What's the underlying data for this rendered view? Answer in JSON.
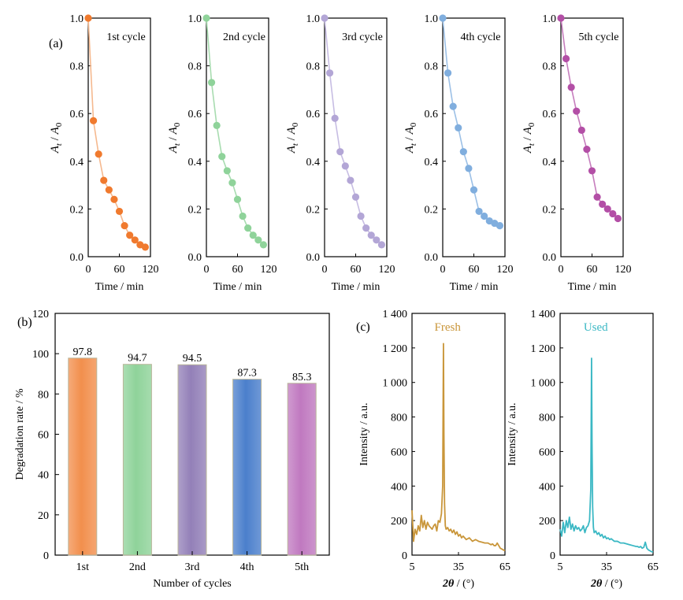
{
  "figure": {
    "panel_labels": {
      "a": "(a)",
      "b": "(b)",
      "c": "(c)"
    }
  },
  "chart_data": [
    {
      "type": "line",
      "panel": "(a)",
      "subplot_label": "1st cycle",
      "xlabel": "Time / min",
      "ylabel_main": "A",
      "ylabel_sub_t": "t",
      "ylabel_sep": " / ",
      "ylabel_sub_0": "0",
      "xlim": [
        0,
        120
      ],
      "ylim": [
        0,
        1.0
      ],
      "xticks": [
        0,
        60,
        120
      ],
      "yticks": [
        "0.0",
        "0.2",
        "0.4",
        "0.6",
        "0.8",
        "1.0"
      ],
      "color": "#f07a2e",
      "line_color": "#f5b98f",
      "x": [
        0,
        10,
        20,
        30,
        40,
        50,
        60,
        70,
        80,
        90,
        100,
        110
      ],
      "y": [
        1.0,
        0.57,
        0.43,
        0.32,
        0.28,
        0.24,
        0.19,
        0.13,
        0.09,
        0.07,
        0.05,
        0.04
      ]
    },
    {
      "type": "line",
      "panel": "(a)",
      "subplot_label": "2nd cycle",
      "xlabel": "Time / min",
      "ylabel_main": "A",
      "ylabel_sub_t": "t",
      "ylabel_sep": " / ",
      "ylabel_sub_0": "0",
      "xlim": [
        0,
        120
      ],
      "ylim": [
        0,
        1.0
      ],
      "xticks": [
        0,
        60,
        120
      ],
      "yticks": [
        "0.0",
        "0.2",
        "0.4",
        "0.6",
        "0.8",
        "1.0"
      ],
      "color": "#8fd39a",
      "line_color": "#a8dcb0",
      "x": [
        0,
        10,
        20,
        30,
        40,
        50,
        60,
        70,
        80,
        90,
        100,
        110
      ],
      "y": [
        1.0,
        0.73,
        0.55,
        0.42,
        0.36,
        0.31,
        0.24,
        0.17,
        0.12,
        0.09,
        0.07,
        0.05
      ]
    },
    {
      "type": "line",
      "panel": "(a)",
      "subplot_label": "3rd cycle",
      "xlabel": "Time / min",
      "ylabel_main": "A",
      "ylabel_sub_t": "t",
      "ylabel_sep": " / ",
      "ylabel_sub_0": "0",
      "xlim": [
        0,
        120
      ],
      "ylim": [
        0,
        1.0
      ],
      "xticks": [
        0,
        60,
        120
      ],
      "yticks": [
        "0.0",
        "0.2",
        "0.4",
        "0.6",
        "0.8",
        "1.0"
      ],
      "color": "#b3a6d6",
      "line_color": "#c7bde3",
      "x": [
        0,
        10,
        20,
        30,
        40,
        50,
        60,
        70,
        80,
        90,
        100,
        110
      ],
      "y": [
        1.0,
        0.77,
        0.58,
        0.44,
        0.38,
        0.32,
        0.25,
        0.17,
        0.12,
        0.09,
        0.07,
        0.05
      ]
    },
    {
      "type": "line",
      "panel": "(a)",
      "subplot_label": "4th cycle",
      "xlabel": "Time / min",
      "ylabel_main": "A",
      "ylabel_sub_t": "t",
      "ylabel_sep": " / ",
      "ylabel_sub_0": "0",
      "xlim": [
        0,
        120
      ],
      "ylim": [
        0,
        1.0
      ],
      "xticks": [
        0,
        60,
        120
      ],
      "yticks": [
        "0.0",
        "0.2",
        "0.4",
        "0.6",
        "0.8",
        "1.0"
      ],
      "color": "#80aede",
      "line_color": "#9cc0e6",
      "x": [
        0,
        10,
        20,
        30,
        40,
        50,
        60,
        70,
        80,
        90,
        100,
        110
      ],
      "y": [
        1.0,
        0.77,
        0.63,
        0.54,
        0.44,
        0.37,
        0.28,
        0.19,
        0.17,
        0.15,
        0.14,
        0.13
      ]
    },
    {
      "type": "line",
      "panel": "(a)",
      "subplot_label": "5th cycle",
      "xlabel": "Time / min",
      "ylabel_main": "A",
      "ylabel_sub_t": "t",
      "ylabel_sep": " / ",
      "ylabel_sub_0": "0",
      "xlim": [
        0,
        120
      ],
      "ylim": [
        0,
        1.0
      ],
      "xticks": [
        0,
        60,
        120
      ],
      "yticks": [
        "0.0",
        "0.2",
        "0.4",
        "0.6",
        "0.8",
        "1.0"
      ],
      "color": "#b34fa6",
      "line_color": "#c67dbd",
      "x": [
        0,
        10,
        20,
        30,
        40,
        50,
        60,
        70,
        80,
        90,
        100,
        110
      ],
      "y": [
        1.0,
        0.83,
        0.71,
        0.61,
        0.53,
        0.45,
        0.36,
        0.25,
        0.22,
        0.2,
        0.18,
        0.16
      ]
    },
    {
      "type": "bar",
      "panel": "(b)",
      "categories": [
        "1st",
        "2nd",
        "3rd",
        "4th",
        "5th"
      ],
      "values": [
        97.8,
        94.7,
        94.5,
        87.3,
        85.3
      ],
      "value_labels": [
        "97.8",
        "94.7",
        "94.5",
        "87.3",
        "85.3"
      ],
      "colors": [
        "#f28f4d",
        "#8fd39a",
        "#9380b8",
        "#4b7fcc",
        "#c079c0"
      ],
      "xlabel": "Number of cycles",
      "ylabel": "Degradation rate / %",
      "ylim": [
        0,
        120
      ],
      "yticks": [
        "0",
        "20",
        "40",
        "60",
        "80",
        "100",
        "120"
      ]
    },
    {
      "type": "line",
      "panel": "(c)",
      "series_label": "Fresh",
      "color": "#c9963a",
      "xlabel_theta": "2θ",
      "xlabel_rest": " / (°)",
      "ylabel": "Intensity / a.u.",
      "xlim": [
        5,
        65
      ],
      "ylim": [
        0,
        1400
      ],
      "xticks": [
        "5",
        "35",
        "65"
      ],
      "yticks": [
        "0",
        "200",
        "400",
        "600",
        "800",
        "1 000",
        "1 200",
        "1 400"
      ],
      "x": [
        5,
        6,
        7,
        8,
        9,
        10,
        11,
        12,
        13,
        14,
        15,
        16,
        17,
        18,
        19,
        20,
        21,
        22,
        23,
        24,
        24.8,
        25.3,
        25.6,
        26,
        26.5,
        27,
        28,
        29,
        30,
        31,
        32,
        33,
        34,
        35,
        36,
        37,
        38,
        40,
        42,
        44,
        46,
        48,
        50,
        52,
        54,
        55,
        56,
        57,
        58,
        59,
        60,
        61,
        62,
        63,
        64,
        65
      ],
      "y": [
        260,
        80,
        150,
        120,
        170,
        140,
        230,
        160,
        200,
        150,
        190,
        170,
        160,
        150,
        170,
        180,
        140,
        200,
        190,
        240,
        400,
        1225,
        700,
        300,
        170,
        150,
        160,
        140,
        150,
        130,
        145,
        120,
        135,
        110,
        120,
        100,
        110,
        90,
        100,
        80,
        90,
        80,
        75,
        70,
        70,
        65,
        60,
        65,
        55,
        55,
        70,
        55,
        40,
        35,
        30,
        25
      ]
    },
    {
      "type": "line",
      "panel": "(c)",
      "series_label": "Used",
      "color": "#3bb8c4",
      "xlabel_theta": "2θ",
      "xlabel_rest": " / (°)",
      "ylabel": "Intensity / a.u.",
      "xlim": [
        5,
        65
      ],
      "ylim": [
        0,
        1400
      ],
      "xticks": [
        "5",
        "35",
        "65"
      ],
      "yticks": [
        "0",
        "200",
        "400",
        "600",
        "800",
        "1 000",
        "1 200",
        "1 400"
      ],
      "x": [
        5,
        6,
        7,
        8,
        9,
        10,
        11,
        12,
        13,
        14,
        15,
        16,
        17,
        18,
        19,
        20,
        21,
        22,
        23,
        24,
        24.8,
        25.3,
        25.6,
        26,
        26.5,
        27,
        28,
        29,
        30,
        31,
        32,
        33,
        34,
        35,
        36,
        37,
        38,
        40,
        42,
        44,
        46,
        48,
        50,
        52,
        54,
        55,
        56,
        57,
        58,
        59,
        60,
        61,
        62,
        63,
        64,
        65
      ],
      "y": [
        150,
        110,
        190,
        130,
        200,
        160,
        220,
        150,
        180,
        140,
        170,
        150,
        160,
        140,
        150,
        170,
        130,
        160,
        170,
        200,
        380,
        1140,
        650,
        280,
        160,
        130,
        140,
        120,
        130,
        110,
        120,
        100,
        110,
        95,
        100,
        90,
        95,
        80,
        80,
        70,
        70,
        65,
        60,
        55,
        50,
        50,
        45,
        50,
        40,
        45,
        75,
        40,
        30,
        25,
        20,
        18
      ]
    }
  ]
}
